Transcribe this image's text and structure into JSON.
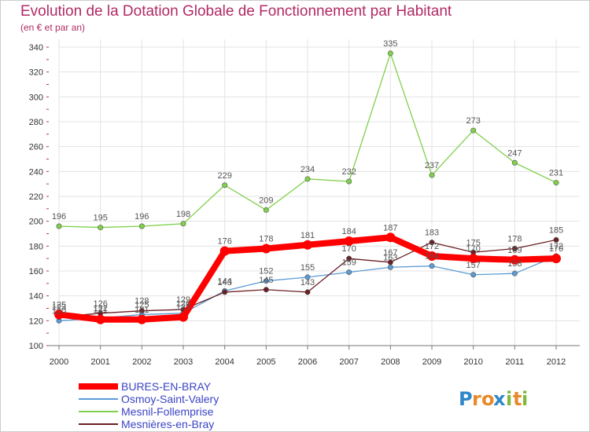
{
  "chart_data": {
    "type": "line",
    "title": "Evolution de la Dotation Globale de Fonctionnement par Habitant",
    "subtitle": "(en € et par an)",
    "x": [
      "2000",
      "2001",
      "2002",
      "2003",
      "2004",
      "2005",
      "2006",
      "2007",
      "2008",
      "2009",
      "2010",
      "2011",
      "2012"
    ],
    "ylim": [
      100,
      340
    ],
    "yticks": [
      "100",
      "120",
      "140",
      "160",
      "180",
      "200",
      "220",
      "240",
      "260",
      "280",
      "300",
      "320",
      "340"
    ],
    "grid": true,
    "legend_position": "bottom-left",
    "series": [
      {
        "name": "BURES-EN-BRAY",
        "color": "#ff0000",
        "values": [
          125,
          121,
          121,
          123,
          176,
          178,
          181,
          184,
          187,
          172,
          170,
          169,
          170
        ],
        "labels": [
          "125",
          "121",
          "121",
          "123",
          "176",
          "178",
          "181",
          "184",
          "187",
          "172",
          "170",
          "169",
          "170"
        ]
      },
      {
        "name": "Osmoy-Saint-Valery",
        "color": "#5b9bd5",
        "values": [
          120,
          122,
          125,
          126,
          144,
          152,
          155,
          159,
          163,
          164,
          157,
          158,
          172
        ],
        "labels": [
          "120",
          "122",
          "125",
          "126",
          "144",
          "152",
          "155",
          "159",
          "163",
          "164",
          "157",
          "158",
          "172"
        ]
      },
      {
        "name": "Mesnil-Follemprise",
        "color": "#7fd04a",
        "values": [
          196,
          195,
          196,
          198,
          229,
          209,
          234,
          232,
          335,
          237,
          273,
          247,
          231
        ],
        "labels": [
          "196",
          "195",
          "196",
          "198",
          "229",
          "209",
          "234",
          "232",
          "335",
          "237",
          "273",
          "247",
          "231"
        ]
      },
      {
        "name": "Mesnières-en-Bray",
        "color": "#6b1f24",
        "values": [
          123,
          126,
          128,
          129,
          143,
          145,
          143,
          170,
          167,
          183,
          175,
          178,
          185
        ],
        "labels": [
          "123",
          "126",
          "128",
          "129",
          "143",
          "145",
          "143",
          "170",
          "167",
          "183",
          "175",
          "178",
          "185"
        ]
      }
    ]
  },
  "logo": {
    "letters": [
      "P",
      "r",
      "o",
      "x",
      "i",
      "t",
      "i"
    ],
    "colors": [
      "#2f86c8",
      "#e8892a",
      "#e8892a",
      "#2f86c8",
      "#7fba3a",
      "#e8892a",
      "#7fba3a"
    ]
  }
}
